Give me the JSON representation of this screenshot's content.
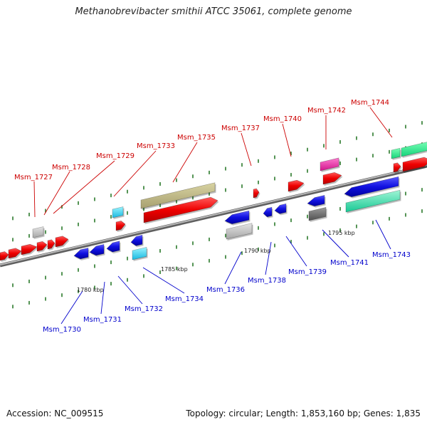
{
  "title": "Methanobrevibacter smithii ATCC 35061, complete genome",
  "footer": {
    "accession": "Accession: NC_009515",
    "summary": "Topology: circular; Length: 1,853,160 bp; Genes: 1,835"
  },
  "colors": {
    "forward_label": "#cc0000",
    "reverse_label": "#0000cc",
    "tick": "#2a7a2a",
    "backbone": "#8c8c8c"
  },
  "scale_labels": [
    "1780 kbp",
    "1785 kbp",
    "1790 kbp",
    "1795 kbp"
  ],
  "genes_forward": [
    "Msm_1727",
    "Msm_1728",
    "Msm_1729",
    "Msm_1733",
    "Msm_1735",
    "Msm_1737",
    "Msm_1740",
    "Msm_1742",
    "Msm_1744"
  ],
  "genes_reverse": [
    "Msm_1730",
    "Msm_1731",
    "Msm_1732",
    "Msm_1734",
    "Msm_1736",
    "Msm_1738",
    "Msm_1739",
    "Msm_1741",
    "Msm_1743"
  ]
}
